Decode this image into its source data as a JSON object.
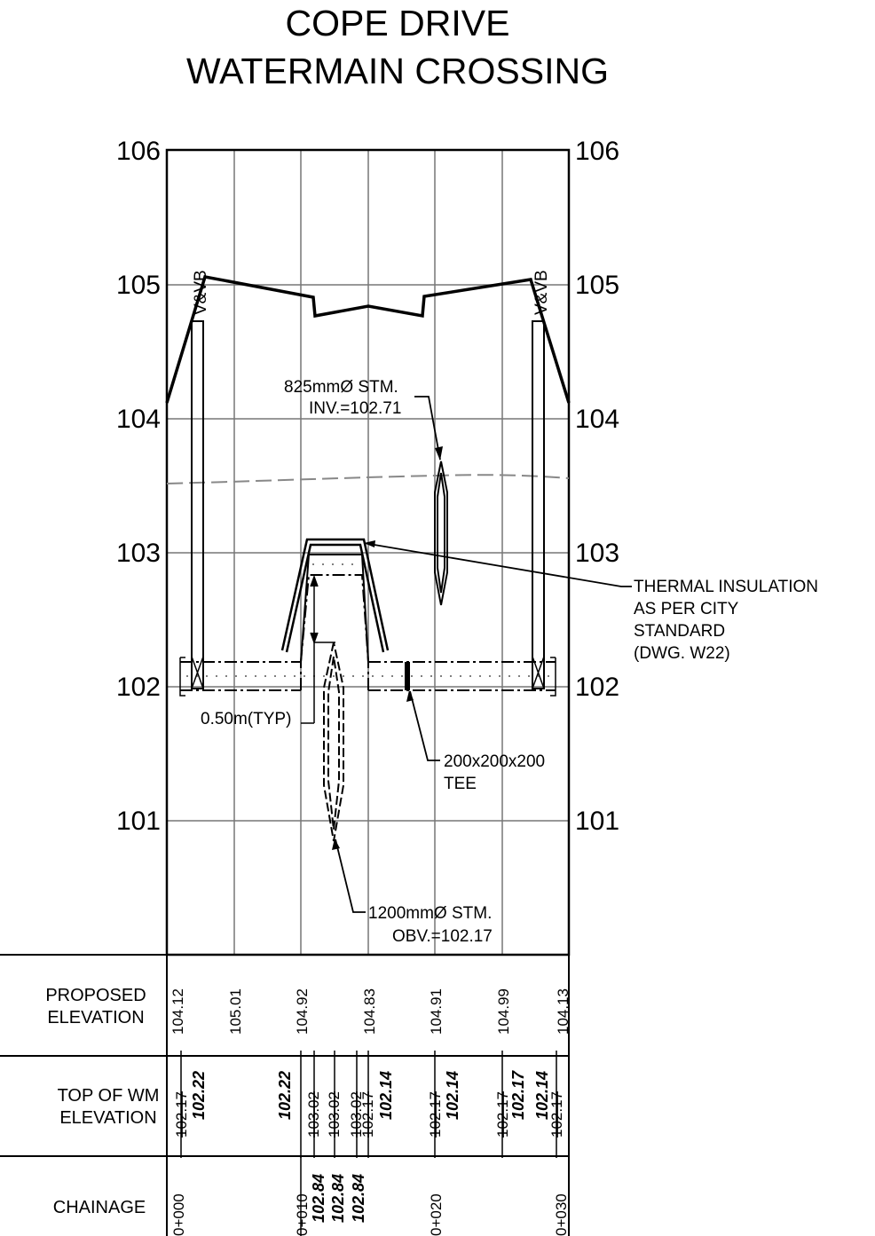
{
  "title": {
    "line1": "COPE DRIVE",
    "line2": "WATERMAIN CROSSING"
  },
  "elevation_axis": {
    "left_labels": [
      "106",
      "105",
      "104",
      "103",
      "102",
      "101"
    ],
    "right_labels": [
      "106",
      "105",
      "104",
      "103",
      "102",
      "101"
    ],
    "range": [
      100,
      106
    ]
  },
  "annotations": {
    "vb_left": "V&VB",
    "vb_right": "V&VB",
    "storm_825_line1": "825mmØ STM.",
    "storm_825_line2": "INV.=102.71",
    "thermal_line1": "THERMAL INSULATION",
    "thermal_line2": "AS PER CITY",
    "thermal_line3": "STANDARD",
    "thermal_line4": "(DWG. W22)",
    "typ_clearance": "0.50m(TYP)",
    "tee_line1": "200x200x200",
    "tee_line2": "TEE",
    "storm_1200_line1": "1200mmØ STM.",
    "storm_1200_line2": "OBV.=102.17"
  },
  "table": {
    "proposed_elevation": {
      "label_line1": "PROPOSED",
      "label_line2": "ELEVATION",
      "values": [
        "104.12",
        "105.01",
        "104.92",
        "104.83",
        "104.91",
        "104.99",
        "104.13"
      ]
    },
    "top_of_wm": {
      "label_line1": "TOP OF WM",
      "label_line2": "ELEVATION",
      "existing": [
        "102.17",
        "103.02",
        "103.02",
        "103.02",
        "102.17",
        "102.17",
        "102.17",
        "102.17"
      ],
      "proposed": [
        "102.22",
        "102.22",
        "102.14",
        "102.14",
        "102.17",
        "102.14"
      ]
    },
    "chainage": {
      "label": "CHAINAGE",
      "stations": [
        "0+000",
        "0+010",
        "0+020",
        "0+030"
      ],
      "values": [
        "102.84",
        "102.84",
        "102.84"
      ]
    }
  }
}
